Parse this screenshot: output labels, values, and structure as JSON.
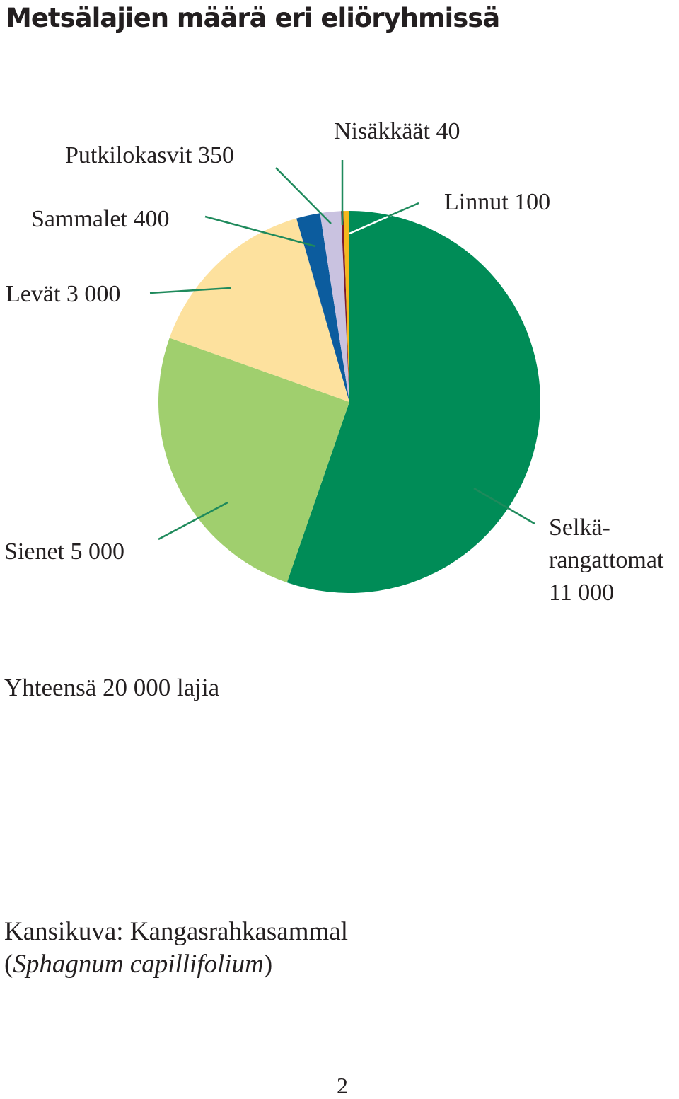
{
  "title": "Metsälajien määrä eri eliöryhmissä",
  "chart_data": {
    "type": "pie",
    "title": "Metsälajien määrä eri eliöryhmissä",
    "slices": [
      {
        "label": "Selkärangattomat",
        "value": 11000,
        "value_text": "11 000",
        "color": "#008c57"
      },
      {
        "label": "Sienet",
        "value": 5000,
        "value_text": "5 000",
        "color": "#a0cf6e"
      },
      {
        "label": "Levät",
        "value": 3000,
        "value_text": "3 000",
        "color": "#fde19e"
      },
      {
        "label": "Sammalet",
        "value": 400,
        "value_text": "400",
        "color": "#0c5c9e"
      },
      {
        "label": "Putkilokasvit",
        "value": 350,
        "value_text": "350",
        "color": "#c9c2e0"
      },
      {
        "label": "Nisäkkäät",
        "value": 40,
        "value_text": "40",
        "color": "#7b1a2e"
      },
      {
        "label": "Linnut",
        "value": 100,
        "value_text": "100",
        "color": "#f5b81c"
      }
    ],
    "labels_display": {
      "selkarangattomat": [
        "Selkä-",
        "rangattomat",
        "11 000"
      ],
      "sienet": "Sienet 5 000",
      "levat": "Levät 3 000",
      "sammalet": "Sammalet 400",
      "putkilokasvit": "Putkilokasvit 350",
      "nisakkaat": "Nisäkkäät 40",
      "linnut": "Linnut 100"
    },
    "leader_color": "#1f8a5c"
  },
  "total": "Yhteensä 20 000 lajia",
  "caption": {
    "line1": "Kansikuva: Kangasrahkasammal",
    "line2_open": "(",
    "line2_italic": "Sphagnum capillifolium",
    "line2_close": ")"
  },
  "page_number": "2"
}
